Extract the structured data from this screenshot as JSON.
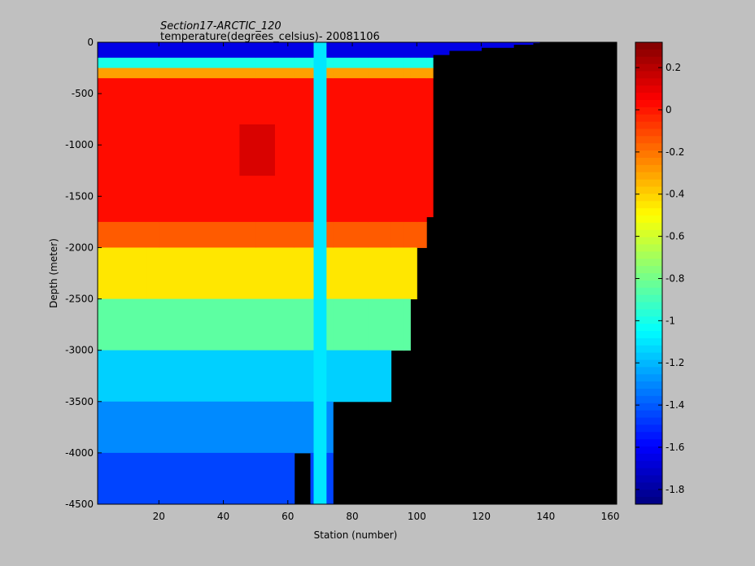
{
  "chart_data": {
    "type": "heatmap",
    "title": "Section17-ARCTIC_120",
    "subtitle": "temperature(degrees_celsius)- 20081106",
    "xlabel": "Station (number)",
    "ylabel": "Depth (meter)",
    "xlim": [
      1,
      162
    ],
    "ylim": [
      -4500,
      0
    ],
    "x_ticks": [
      20,
      40,
      60,
      80,
      100,
      120,
      140,
      160
    ],
    "y_ticks": [
      0,
      -500,
      -1000,
      -1500,
      -2000,
      -2500,
      -3000,
      -3500,
      -4000,
      -4500
    ],
    "colorbar": {
      "range": [
        -1.87,
        0.32
      ],
      "ticks": [
        0.2,
        0,
        -0.2,
        -0.4,
        -0.6,
        -0.8,
        -1,
        -1.2,
        -1.4,
        -1.6,
        -1.8
      ],
      "colormap": "jet"
    },
    "depth_bands": [
      {
        "top": 0,
        "bottom": -150,
        "value": -1.65
      },
      {
        "top": -150,
        "bottom": -250,
        "value": -1.0
      },
      {
        "top": -250,
        "bottom": -350,
        "value": -0.3
      },
      {
        "top": -350,
        "bottom": -1750,
        "value": 0.02
      },
      {
        "top": -1750,
        "bottom": -2000,
        "value": -0.15
      },
      {
        "top": -2000,
        "bottom": -2500,
        "value": -0.45
      },
      {
        "top": -2500,
        "bottom": -3000,
        "value": -0.85
      },
      {
        "top": -3000,
        "bottom": -3500,
        "value": -1.15
      },
      {
        "top": -3500,
        "bottom": -4000,
        "value": -1.3
      },
      {
        "top": -4000,
        "bottom": -4500,
        "value": -1.45
      }
    ],
    "warm_core": {
      "x": [
        45,
        56
      ],
      "y": [
        -800,
        -1300
      ],
      "value": 0.15
    },
    "anomaly_station": {
      "x": [
        68,
        72
      ],
      "value": -1.1
    },
    "bottom_profile": {
      "stations": [
        1,
        16,
        20,
        50,
        62,
        67,
        74,
        85,
        92,
        96,
        98,
        100,
        103,
        105,
        110,
        120,
        130,
        136
      ],
      "max_depth": [
        -4500,
        -4500,
        -4500,
        -4500,
        -4000,
        -4500,
        -3500,
        -3500,
        -3000,
        -3000,
        -2500,
        -2000,
        -1700,
        -120,
        -80,
        -50,
        -20,
        -5
      ]
    }
  }
}
